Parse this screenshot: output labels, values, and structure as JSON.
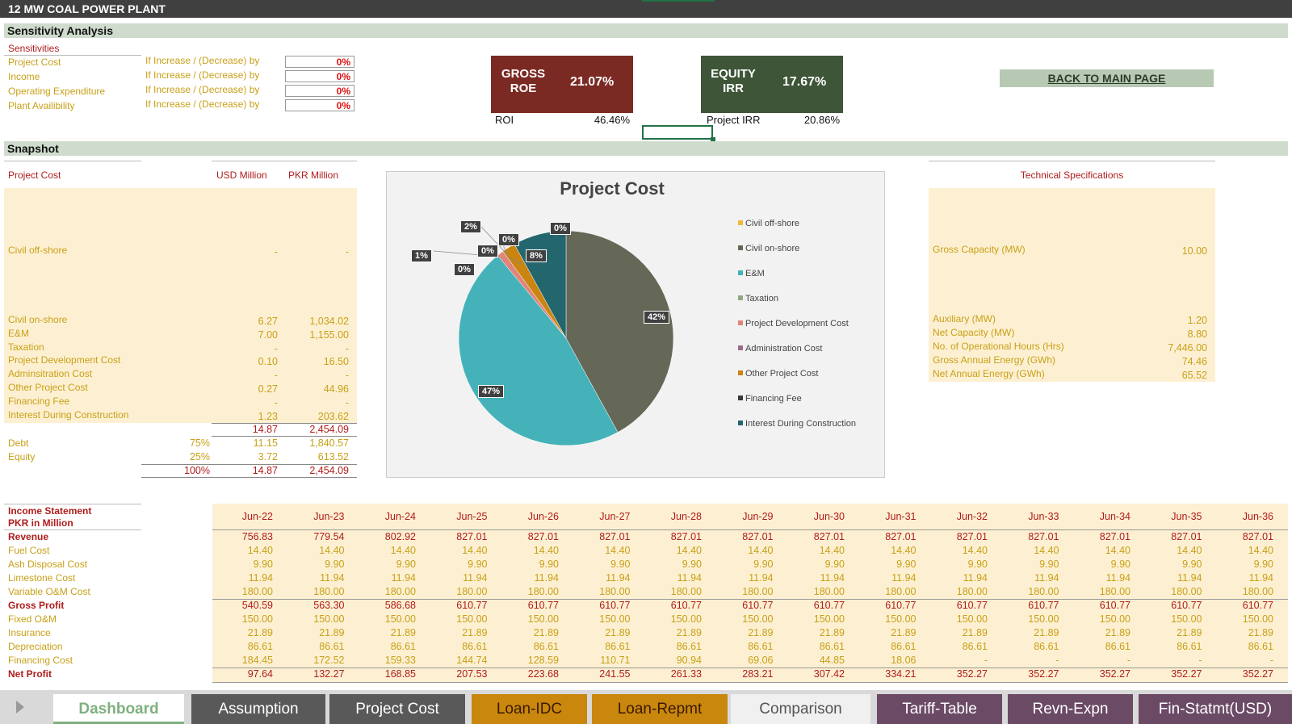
{
  "title": "12 MW COAL POWER PLANT",
  "sensitivity": {
    "heading": "Sensitivity Analysis",
    "sub_heading": "Sensitivities",
    "rows": [
      {
        "label": "Project Cost",
        "desc": "If Increase / (Decrease) by",
        "value": "0%"
      },
      {
        "label": "Income",
        "desc": "If Increase / (Decrease) by",
        "value": "0%"
      },
      {
        "label": "Operating Expenditure",
        "desc": "If Increase / (Decrease) by",
        "value": "0%"
      },
      {
        "label": "Plant Availibility",
        "desc": "If Increase / (Decrease) by",
        "value": "0%"
      }
    ]
  },
  "kpis": {
    "roe_label_1": "GROSS",
    "roe_label_2": "ROE",
    "roe_value": "21.07%",
    "roe_color": "#7b2a23",
    "irr_label_1": "EQUITY",
    "irr_label_2": "IRR",
    "irr_value": "17.67%",
    "irr_color": "#3e5537",
    "roi_label": "ROI",
    "roi_value": "46.46%",
    "project_irr_label": "Project IRR",
    "project_irr_value": "20.86%"
  },
  "back_button": "BACK TO MAIN PAGE",
  "snapshot": {
    "heading": "Snapshot",
    "project_cost_label": "Project Cost",
    "usd_header": "USD Million",
    "pkr_header": "PKR Million",
    "rows": [
      {
        "label": "Civil off-shore",
        "usd": "-",
        "pkr": "-"
      },
      {
        "label": "Civil on-shore",
        "usd": "6.27",
        "pkr": "1,034.02"
      },
      {
        "label": "E&M",
        "usd": "7.00",
        "pkr": "1,155.00"
      },
      {
        "label": "Taxation",
        "usd": "-",
        "pkr": "-"
      },
      {
        "label": "Project Development Cost",
        "usd": "0.10",
        "pkr": "16.50"
      },
      {
        "label": "Adminsitration Cost",
        "usd": "-",
        "pkr": "-"
      },
      {
        "label": "Other Project Cost",
        "usd": "0.27",
        "pkr": "44.96"
      },
      {
        "label": "Financing Fee",
        "usd": "-",
        "pkr": "-"
      },
      {
        "label": "Interest During Construction",
        "usd": "1.23",
        "pkr": "203.62"
      }
    ],
    "total_usd": "14.87",
    "total_pkr": "2,454.09",
    "debt_label": "Debt",
    "debt_pct": "75%",
    "debt_usd": "11.15",
    "debt_pkr": "1,840.57",
    "equity_label": "Equity",
    "equity_pct": "25%",
    "equity_usd": "3.72",
    "equity_pkr": "613.52",
    "grand_pct": "100%",
    "grand_usd": "14.87",
    "grand_pkr": "2,454.09"
  },
  "tech": {
    "heading": "Technical Specifications",
    "rows": [
      {
        "label": "Gross Capacity (MW)",
        "value": "10.00"
      },
      {
        "label": "Auxiliary (MW)",
        "value": "1.20"
      },
      {
        "label": "Net Capacity (MW)",
        "value": "8.80"
      },
      {
        "label": "No. of Operational Hours (Hrs)",
        "value": "7,446.00"
      },
      {
        "label": "Gross Annual Energy (GWh)",
        "value": "74.46"
      },
      {
        "label": "Net Annual Energy (GWh)",
        "value": "65.52"
      }
    ]
  },
  "chart_data": {
    "type": "pie",
    "title": "Project Cost",
    "categories": [
      "Civil off-shore",
      "Civil on-shore",
      "E&M",
      "Taxation",
      "Project Development Cost",
      "Administration Cost",
      "Other Project Cost",
      "Financing Fee",
      "Interest During Construction"
    ],
    "values": [
      0,
      42,
      47,
      0,
      1,
      0,
      2,
      0,
      8
    ],
    "labels": [
      "0%",
      "42%",
      "47%",
      "0%",
      "1%",
      "0%",
      "2%",
      "0%",
      "8%"
    ],
    "colors": [
      "#f2b73a",
      "#656857",
      "#45b2b9",
      "#8faa7b",
      "#e0857a",
      "#9b6b8a",
      "#c9850f",
      "#3a3a3a",
      "#24666d"
    ],
    "legend_position": "right"
  },
  "income": {
    "title_1": "Income Statement",
    "title_2": "PKR in Million",
    "years": [
      "Jun-22",
      "Jun-23",
      "Jun-24",
      "Jun-25",
      "Jun-26",
      "Jun-27",
      "Jun-28",
      "Jun-29",
      "Jun-30",
      "Jun-31",
      "Jun-32",
      "Jun-33",
      "Jun-34",
      "Jun-35",
      "Jun-36"
    ],
    "rows": [
      {
        "label": "Revenue",
        "style": "red",
        "values": [
          "756.83",
          "779.54",
          "802.92",
          "827.01",
          "827.01",
          "827.01",
          "827.01",
          "827.01",
          "827.01",
          "827.01",
          "827.01",
          "827.01",
          "827.01",
          "827.01",
          "827.01"
        ]
      },
      {
        "label": "Fuel Cost",
        "style": "gold",
        "values": [
          "14.40",
          "14.40",
          "14.40",
          "14.40",
          "14.40",
          "14.40",
          "14.40",
          "14.40",
          "14.40",
          "14.40",
          "14.40",
          "14.40",
          "14.40",
          "14.40",
          "14.40"
        ]
      },
      {
        "label": "Ash Disposal Cost",
        "style": "gold",
        "values": [
          "9.90",
          "9.90",
          "9.90",
          "9.90",
          "9.90",
          "9.90",
          "9.90",
          "9.90",
          "9.90",
          "9.90",
          "9.90",
          "9.90",
          "9.90",
          "9.90",
          "9.90"
        ]
      },
      {
        "label": "Limestone Cost",
        "style": "gold",
        "values": [
          "11.94",
          "11.94",
          "11.94",
          "11.94",
          "11.94",
          "11.94",
          "11.94",
          "11.94",
          "11.94",
          "11.94",
          "11.94",
          "11.94",
          "11.94",
          "11.94",
          "11.94"
        ]
      },
      {
        "label": "Variable O&M Cost",
        "style": "gold",
        "values": [
          "180.00",
          "180.00",
          "180.00",
          "180.00",
          "180.00",
          "180.00",
          "180.00",
          "180.00",
          "180.00",
          "180.00",
          "180.00",
          "180.00",
          "180.00",
          "180.00",
          "180.00"
        ]
      },
      {
        "label": "Gross Profit",
        "style": "red",
        "values": [
          "540.59",
          "563.30",
          "586.68",
          "610.77",
          "610.77",
          "610.77",
          "610.77",
          "610.77",
          "610.77",
          "610.77",
          "610.77",
          "610.77",
          "610.77",
          "610.77",
          "610.77"
        ]
      },
      {
        "label": "Fixed O&M",
        "style": "gold",
        "values": [
          "150.00",
          "150.00",
          "150.00",
          "150.00",
          "150.00",
          "150.00",
          "150.00",
          "150.00",
          "150.00",
          "150.00",
          "150.00",
          "150.00",
          "150.00",
          "150.00",
          "150.00"
        ]
      },
      {
        "label": "Insurance",
        "style": "gold",
        "values": [
          "21.89",
          "21.89",
          "21.89",
          "21.89",
          "21.89",
          "21.89",
          "21.89",
          "21.89",
          "21.89",
          "21.89",
          "21.89",
          "21.89",
          "21.89",
          "21.89",
          "21.89"
        ]
      },
      {
        "label": "Depreciation",
        "style": "gold",
        "values": [
          "86.61",
          "86.61",
          "86.61",
          "86.61",
          "86.61",
          "86.61",
          "86.61",
          "86.61",
          "86.61",
          "86.61",
          "86.61",
          "86.61",
          "86.61",
          "86.61",
          "86.61"
        ]
      },
      {
        "label": "Financing Cost",
        "style": "gold",
        "values": [
          "184.45",
          "172.52",
          "159.33",
          "144.74",
          "128.59",
          "110.71",
          "90.94",
          "69.06",
          "44.85",
          "18.06",
          "-",
          "-",
          "-",
          "-",
          "-"
        ]
      },
      {
        "label": "Net Profit",
        "style": "red",
        "values": [
          "97.64",
          "132.27",
          "168.85",
          "207.53",
          "223.68",
          "241.55",
          "261.33",
          "283.21",
          "307.42",
          "334.21",
          "352.27",
          "352.27",
          "352.27",
          "352.27",
          "352.27"
        ]
      }
    ]
  },
  "tabs": [
    {
      "label": "Dashboard",
      "bg": "#ffffff",
      "fg": "#7fb07f",
      "active": true
    },
    {
      "label": "Assumption",
      "bg": "#595959",
      "fg": "#ffffff"
    },
    {
      "label": "Project Cost",
      "bg": "#595959",
      "fg": "#ffffff"
    },
    {
      "label": "Loan-IDC",
      "bg": "#c9870e",
      "fg": "#3a1a00"
    },
    {
      "label": "Loan-Repmt",
      "bg": "#c9870e",
      "fg": "#3a1a00"
    },
    {
      "label": "Comparison",
      "bg": "#f0f0f0",
      "fg": "#555555"
    },
    {
      "label": "Tariff-Table",
      "bg": "#6b4a66",
      "fg": "#ffffff"
    },
    {
      "label": "Revn-Expn",
      "bg": "#6b4a66",
      "fg": "#ffffff"
    },
    {
      "label": "Fin-Statmt(USD)",
      "bg": "#6b4a66",
      "fg": "#ffffff"
    }
  ]
}
